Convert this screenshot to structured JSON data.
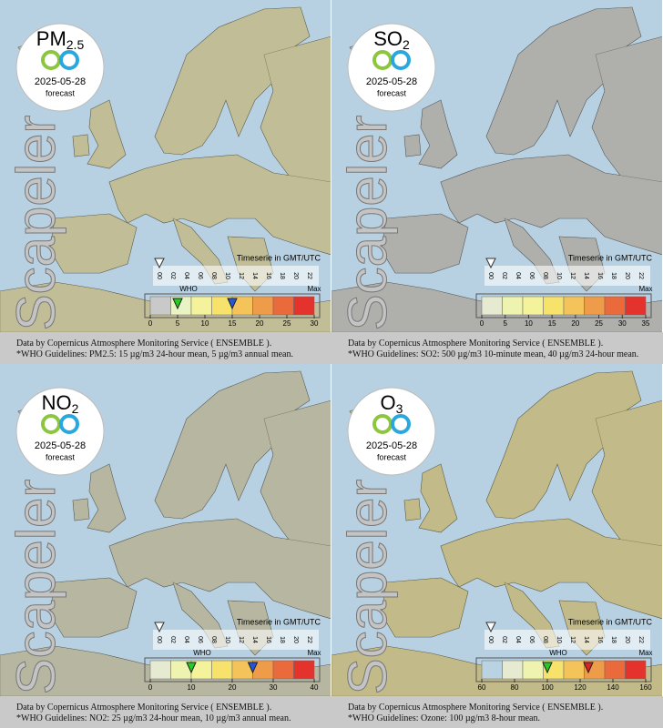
{
  "panels": [
    {
      "name": "PM",
      "sub": "2.5",
      "date": "2025-05-28",
      "forecast": "forecast",
      "brand": "Scapeler",
      "timeserie": "Timeserie in GMT/UTC",
      "hours": [
        "00",
        "02",
        "04",
        "06",
        "08",
        "10",
        "12",
        "14",
        "16",
        "18",
        "20",
        "22"
      ],
      "who_label": "WHO",
      "max_label": "Max",
      "legend_ticks": [
        0,
        5,
        10,
        15,
        20,
        25,
        30
      ],
      "legend_colors": [
        "#c9c9c9",
        "#e9f3c4",
        "#f4f29a",
        "#f7e36b",
        "#f4c45a",
        "#ef9c4a",
        "#ea6a3c",
        "#e4332c"
      ],
      "who_markers": [
        {
          "value": 5,
          "color": "#22cc22"
        },
        {
          "value": 15,
          "color": "#2255dd"
        }
      ],
      "wash": "#efe690",
      "caption": [
        "Data by Copernicus Atmosphere Monitoring Service ( ENSEMBLE ).",
        "*WHO Guidelines: PM2.5: 15 µg/m3 24-hour mean, 5 µg/m3 annual mean."
      ]
    },
    {
      "name": "SO",
      "sub": "2",
      "date": "2025-05-28",
      "forecast": "forecast",
      "brand": "Scapeler",
      "timeserie": "Timeserie in GMT/UTC",
      "hours": [
        "00",
        "02",
        "04",
        "06",
        "08",
        "10",
        "12",
        "14",
        "16",
        "18",
        "20",
        "22"
      ],
      "max_label": "Max",
      "legend_ticks": [
        0,
        5,
        10,
        15,
        20,
        25,
        30,
        35
      ],
      "legend_colors": [
        "#e5ead0",
        "#eef3b0",
        "#f4f29a",
        "#f7e36b",
        "#f4c45a",
        "#ef9c4a",
        "#ea6a3c",
        "#e4332c"
      ],
      "who_markers": [],
      "wash": "#c8c8c0",
      "caption": [
        "Data by Copernicus Atmosphere Monitoring Service ( ENSEMBLE ).",
        "*WHO Guidelines: SO2: 500 µg/m3 10-minute mean, 40 µg/m3 24-hour mean."
      ]
    },
    {
      "name": "NO",
      "sub": "2",
      "date": "2025-05-28",
      "forecast": "forecast",
      "brand": "Scapeler",
      "timeserie": "Timeserie in GMT/UTC",
      "hours": [
        "00",
        "02",
        "04",
        "06",
        "08",
        "10",
        "12",
        "14",
        "16",
        "18",
        "20",
        "22"
      ],
      "who_label": "WHO",
      "max_label": "Max",
      "legend_ticks": [
        0,
        10,
        20,
        30,
        40
      ],
      "legend_colors": [
        "#e5ead0",
        "#eef3b0",
        "#f4f29a",
        "#f7e36b",
        "#f4c45a",
        "#ef9c4a",
        "#ea6a3c",
        "#e4332c"
      ],
      "who_markers": [
        {
          "value": 10,
          "color": "#22cc22"
        },
        {
          "value": 25,
          "color": "#2255dd"
        }
      ],
      "wash": "#d8d8a8",
      "caption": [
        "Data by Copernicus Atmosphere Monitoring Service ( ENSEMBLE ).",
        "*WHO Guidelines: NO2: 25 µg/m3 24-hour mean, 10 µg/m3 annual mean."
      ]
    },
    {
      "name": "O",
      "sub": "3",
      "date": "2025-05-28",
      "forecast": "forecast",
      "brand": "Scapeler",
      "timeserie": "Timeserie in GMT/UTC",
      "hours": [
        "00",
        "02",
        "04",
        "06",
        "08",
        "10",
        "12",
        "14",
        "16",
        "18",
        "20",
        "22"
      ],
      "who_label": "WHO",
      "max_label": "Max",
      "legend_ticks": [
        60,
        80,
        100,
        120,
        140,
        160
      ],
      "legend_colors": [
        "#b9d3e3",
        "#e5ead0",
        "#eef3b0",
        "#f7e36b",
        "#f4c45a",
        "#ef9c4a",
        "#ea6a3c",
        "#e4332c"
      ],
      "who_markers": [
        {
          "value": 100,
          "color": "#22cc22"
        },
        {
          "value": 125,
          "color": "#dd2222"
        }
      ],
      "wash": "#f2e070",
      "caption": [
        "Data by Copernicus Atmosphere Monitoring Service ( ENSEMBLE ).",
        "*WHO Guidelines: Ozone: 100 µg/m3 8-hour mean."
      ]
    }
  ]
}
